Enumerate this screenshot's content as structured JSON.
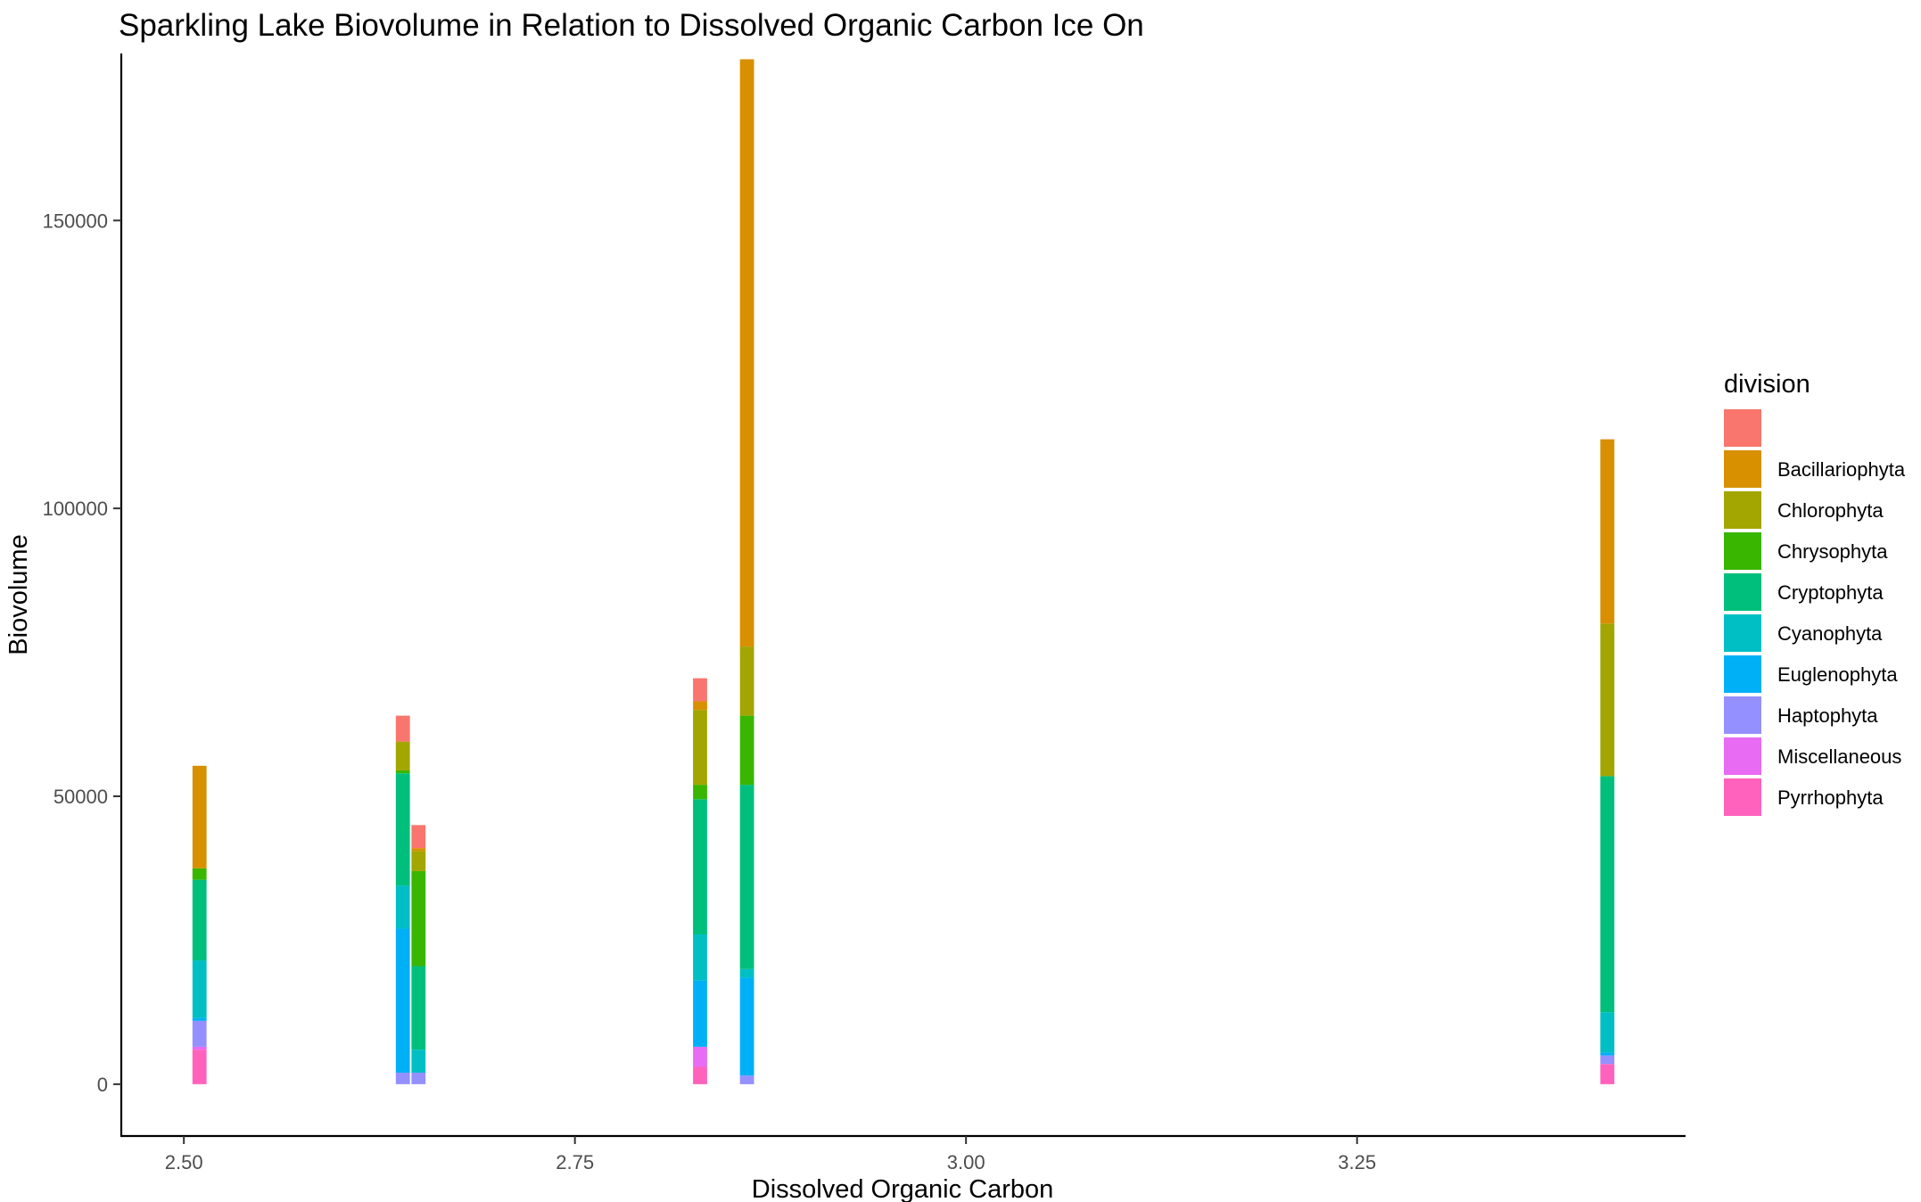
{
  "chart_data": {
    "type": "bar",
    "stacked": true,
    "title": "Sparkling Lake Biovolume in Relation to Dissolved Organic Carbon Ice On",
    "xlabel": "Dissolved Organic Carbon",
    "ylabel": "Biovolume",
    "xlim": [
      2.46,
      3.46
    ],
    "ylim": [
      -9000,
      179000
    ],
    "x_ticks": [
      2.5,
      2.75,
      3.0,
      3.25
    ],
    "x_tick_labels": [
      "2.50",
      "2.75",
      "3.00",
      "3.25"
    ],
    "y_ticks": [
      0,
      50000,
      100000,
      150000
    ],
    "y_tick_labels": [
      "0",
      "50000",
      "100000",
      "150000"
    ],
    "grid": false,
    "bar_width": 0.009,
    "legend": {
      "title": "division",
      "position": "right",
      "entries": [
        "",
        "Bacillariophyta",
        "Chlorophyta",
        "Chrysophyta",
        "Cryptophyta",
        "Cyanophyta",
        "Euglenophyta",
        "Haptophyta",
        "Miscellaneous",
        "Pyrrhophyta"
      ]
    },
    "colors": {
      "": "#F8766D",
      "Bacillariophyta": "#D89000",
      "Chlorophyta": "#A3A500",
      "Chrysophyta": "#39B600",
      "Cryptophyta": "#00BF7D",
      "Cyanophyta": "#00BFC4",
      "Euglenophyta": "#00B0F6",
      "Haptophyta": "#9590FF",
      "Miscellaneous": "#E76BF3",
      "Pyrrhophyta": "#FF62BC"
    },
    "stack_order": [
      "Pyrrhophyta",
      "Miscellaneous",
      "Haptophyta",
      "Euglenophyta",
      "Cyanophyta",
      "Cryptophyta",
      "Chrysophyta",
      "Chlorophyta",
      "Bacillariophyta",
      ""
    ],
    "series": [
      {
        "name": "",
        "values": [
          0,
          4500,
          4000,
          4000,
          0,
          0
        ]
      },
      {
        "name": "Bacillariophyta",
        "values": [
          17800,
          0,
          500,
          1500,
          102000,
          32000
        ]
      },
      {
        "name": "Chlorophyta",
        "values": [
          0,
          5000,
          3500,
          13000,
          12000,
          26500
        ]
      },
      {
        "name": "Chrysophyta",
        "values": [
          2000,
          500,
          16500,
          2500,
          12000,
          0
        ]
      },
      {
        "name": "Cryptophyta",
        "values": [
          14000,
          19500,
          14500,
          23500,
          32000,
          41000
        ]
      },
      {
        "name": "Cyanophyta",
        "values": [
          10000,
          7500,
          4000,
          8000,
          1500,
          7000
        ]
      },
      {
        "name": "Euglenophyta",
        "values": [
          500,
          25000,
          0,
          11500,
          17000,
          500
        ]
      },
      {
        "name": "Haptophyta",
        "values": [
          4500,
          2000,
          2000,
          0,
          1500,
          1500
        ]
      },
      {
        "name": "Miscellaneous",
        "values": [
          500,
          0,
          0,
          3500,
          0,
          0
        ]
      },
      {
        "name": "Pyrrhophyta",
        "values": [
          6000,
          0,
          0,
          3000,
          0,
          3500
        ]
      }
    ],
    "x": [
      2.51,
      2.64,
      2.65,
      2.83,
      2.86,
      3.41
    ]
  }
}
